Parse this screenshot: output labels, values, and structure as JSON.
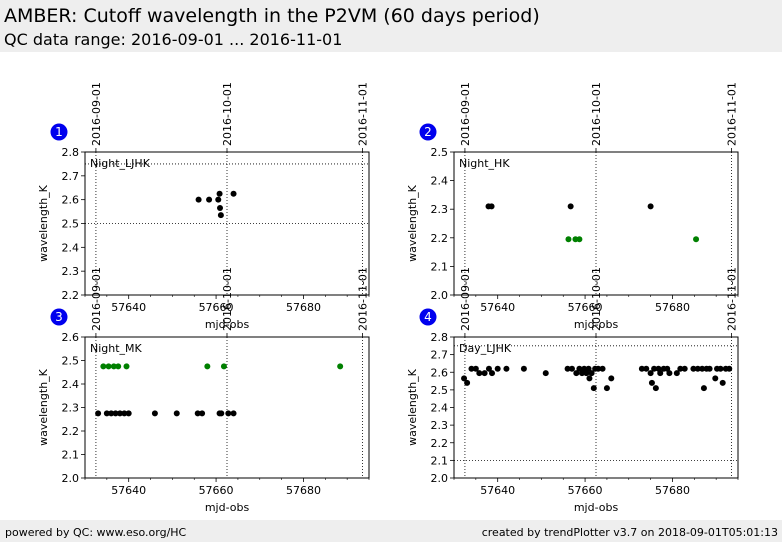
{
  "header": {
    "title": "AMBER: Cutoff wavelength in the P2VM (60 days period)",
    "subtitle": "QC data range: 2016-09-01 ... 2016-11-01"
  },
  "footer": {
    "left": "powered by QC: www.eso.org/HC",
    "right": "created by trendPlotter v3.7 on 2018-09-01T05:01:13"
  },
  "colors": {
    "black_points": "#000000",
    "green_points": "#008000",
    "badge": "#0000ee"
  },
  "chart_data": [
    {
      "type": "scatter",
      "panel_number": "1",
      "label": "Night_LJHK",
      "xlabel": "mjd-obs",
      "ylabel": "wavelength_K",
      "xlim": [
        57630,
        57695
      ],
      "ylim": [
        2.2,
        2.8
      ],
      "xticks": [
        57640,
        57660,
        57680
      ],
      "yticks": [
        2.2,
        2.3,
        2.4,
        2.5,
        2.6,
        2.7,
        2.8
      ],
      "date_markers": [
        {
          "label": "2016-09-01",
          "mjd": 57632.5
        },
        {
          "label": "2016-10-01",
          "mjd": 57662.5
        },
        {
          "label": "2016-11-01",
          "mjd": 57693.5
        }
      ],
      "hlines": [
        2.5,
        2.75
      ],
      "series": [
        {
          "color": "#000000",
          "points": [
            [
              57656.0,
              2.6
            ],
            [
              57658.4,
              2.6
            ],
            [
              57660.5,
              2.6
            ],
            [
              57660.8,
              2.625
            ],
            [
              57660.9,
              2.565
            ],
            [
              57661.1,
              2.535
            ],
            [
              57664.0,
              2.625
            ]
          ]
        }
      ]
    },
    {
      "type": "scatter",
      "panel_number": "2",
      "label": "Night_HK",
      "xlabel": "mjd-obs",
      "ylabel": "wavelength_K",
      "xlim": [
        57630,
        57695
      ],
      "ylim": [
        2.0,
        2.5
      ],
      "xticks": [
        57640,
        57660,
        57680
      ],
      "yticks": [
        2.0,
        2.1,
        2.2,
        2.3,
        2.4,
        2.5
      ],
      "date_markers": [
        {
          "label": "2016-09-01",
          "mjd": 57632.5
        },
        {
          "label": "2016-10-01",
          "mjd": 57662.5
        },
        {
          "label": "2016-11-01",
          "mjd": 57693.5
        }
      ],
      "hlines": [],
      "series": [
        {
          "color": "#000000",
          "points": [
            [
              57637.9,
              2.31
            ],
            [
              57638.6,
              2.31
            ],
            [
              57656.7,
              2.31
            ],
            [
              57675.0,
              2.31
            ]
          ]
        },
        {
          "color": "#008000",
          "points": [
            [
              57656.2,
              2.195
            ],
            [
              57657.8,
              2.195
            ],
            [
              57658.7,
              2.195
            ],
            [
              57685.4,
              2.195
            ]
          ]
        }
      ]
    },
    {
      "type": "scatter",
      "panel_number": "3",
      "label": "Night_MK",
      "xlabel": "mjd-obs",
      "ylabel": "wavelength_K",
      "xlim": [
        57630,
        57695
      ],
      "ylim": [
        2.0,
        2.6
      ],
      "xticks": [
        57640,
        57660,
        57680
      ],
      "yticks": [
        2.0,
        2.1,
        2.2,
        2.3,
        2.4,
        2.5,
        2.6
      ],
      "date_markers": [
        {
          "label": "2016-09-01",
          "mjd": 57632.5
        },
        {
          "label": "2016-10-01",
          "mjd": 57662.5
        },
        {
          "label": "2016-11-01",
          "mjd": 57693.5
        }
      ],
      "hlines": [],
      "series": [
        {
          "color": "#000000",
          "points": [
            [
              57633.0,
              2.275
            ],
            [
              57635.0,
              2.275
            ],
            [
              57636.0,
              2.275
            ],
            [
              57637.0,
              2.275
            ],
            [
              57638.0,
              2.275
            ],
            [
              57639.0,
              2.275
            ],
            [
              57640.0,
              2.275
            ],
            [
              57646.0,
              2.275
            ],
            [
              57651.0,
              2.275
            ],
            [
              57655.8,
              2.275
            ],
            [
              57656.8,
              2.275
            ],
            [
              57660.8,
              2.275
            ],
            [
              57661.2,
              2.275
            ],
            [
              57662.8,
              2.275
            ],
            [
              57664.0,
              2.275
            ]
          ]
        },
        {
          "color": "#008000",
          "points": [
            [
              57634.2,
              2.475
            ],
            [
              57635.4,
              2.475
            ],
            [
              57636.6,
              2.475
            ],
            [
              57637.6,
              2.475
            ],
            [
              57639.5,
              2.475
            ],
            [
              57658.0,
              2.475
            ],
            [
              57661.8,
              2.475
            ],
            [
              57688.4,
              2.475
            ]
          ]
        }
      ]
    },
    {
      "type": "scatter",
      "panel_number": "4",
      "label": "Day_LJHK",
      "xlabel": "mjd-obs",
      "ylabel": "wavelength_K",
      "xlim": [
        57630,
        57695
      ],
      "ylim": [
        2.0,
        2.8
      ],
      "xticks": [
        57640,
        57660,
        57680
      ],
      "yticks": [
        2.0,
        2.1,
        2.2,
        2.3,
        2.4,
        2.5,
        2.6,
        2.7,
        2.8
      ],
      "date_markers": [
        {
          "label": "2016-09-01",
          "mjd": 57632.5
        },
        {
          "label": "2016-10-01",
          "mjd": 57662.5
        },
        {
          "label": "2016-11-01",
          "mjd": 57693.5
        }
      ],
      "hlines": [
        2.1,
        2.75
      ],
      "series": [
        {
          "color": "#000000",
          "points": [
            [
              57632.3,
              2.565
            ],
            [
              57633.0,
              2.54
            ],
            [
              57634.0,
              2.62
            ],
            [
              57635.0,
              2.62
            ],
            [
              57635.8,
              2.595
            ],
            [
              57637.0,
              2.595
            ],
            [
              57638.0,
              2.62
            ],
            [
              57638.7,
              2.595
            ],
            [
              57640.0,
              2.62
            ],
            [
              57642.0,
              2.62
            ],
            [
              57646.0,
              2.62
            ],
            [
              57651.0,
              2.595
            ],
            [
              57656.0,
              2.62
            ],
            [
              57657.0,
              2.62
            ],
            [
              57658.0,
              2.595
            ],
            [
              57658.7,
              2.62
            ],
            [
              57659.3,
              2.595
            ],
            [
              57659.8,
              2.62
            ],
            [
              57660.3,
              2.595
            ],
            [
              57660.8,
              2.62
            ],
            [
              57661.0,
              2.565
            ],
            [
              57661.5,
              2.595
            ],
            [
              57662.0,
              2.51
            ],
            [
              57662.3,
              2.62
            ],
            [
              57663.0,
              2.62
            ],
            [
              57664.0,
              2.62
            ],
            [
              57665.0,
              2.51
            ],
            [
              57666.0,
              2.565
            ],
            [
              57673.0,
              2.62
            ],
            [
              57674.0,
              2.62
            ],
            [
              57675.0,
              2.595
            ],
            [
              57675.3,
              2.54
            ],
            [
              57675.8,
              2.62
            ],
            [
              57676.2,
              2.51
            ],
            [
              57676.8,
              2.62
            ],
            [
              57677.2,
              2.595
            ],
            [
              57678.0,
              2.62
            ],
            [
              57678.8,
              2.62
            ],
            [
              57679.3,
              2.595
            ],
            [
              57681.0,
              2.595
            ],
            [
              57681.8,
              2.62
            ],
            [
              57682.8,
              2.62
            ],
            [
              57684.8,
              2.62
            ],
            [
              57685.8,
              2.62
            ],
            [
              57686.8,
              2.62
            ],
            [
              57687.2,
              2.51
            ],
            [
              57687.8,
              2.62
            ],
            [
              57688.5,
              2.62
            ],
            [
              57689.8,
              2.565
            ],
            [
              57690.2,
              2.62
            ],
            [
              57691.0,
              2.62
            ],
            [
              57691.5,
              2.54
            ],
            [
              57692.2,
              2.62
            ],
            [
              57693.0,
              2.62
            ]
          ]
        }
      ]
    }
  ]
}
